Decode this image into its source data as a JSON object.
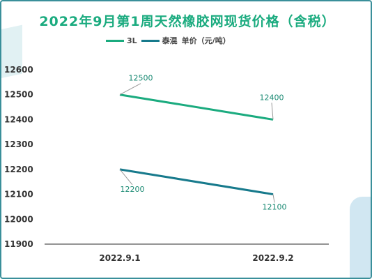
{
  "title": "2022年9月第1周天然橡胶网现货价格（含税）",
  "colors": {
    "accent": "#1bab7f",
    "series_a": "#1bab7f",
    "series_b": "#177a8c",
    "axis_text": "#333333"
  },
  "chart_data": {
    "type": "line",
    "title": "2022年9月第1周天然橡胶网现货价格（含税）",
    "categories": [
      "2022.9.1",
      "2022.9.2"
    ],
    "ylim": [
      11900,
      12600
    ],
    "yticks": [
      11900,
      12000,
      12100,
      12200,
      12300,
      12400,
      12500,
      12600
    ],
    "grid": false,
    "legend_position": "top",
    "legend_suffix": "单价（元/吨）",
    "series": [
      {
        "name": "3L",
        "values": [
          12500,
          12400
        ],
        "color": "#1bab7f"
      },
      {
        "name": "泰混",
        "values": [
          12200,
          12100
        ],
        "color": "#177a8c"
      }
    ],
    "data_labels": [
      "12500",
      "12400",
      "12200",
      "12100"
    ]
  }
}
